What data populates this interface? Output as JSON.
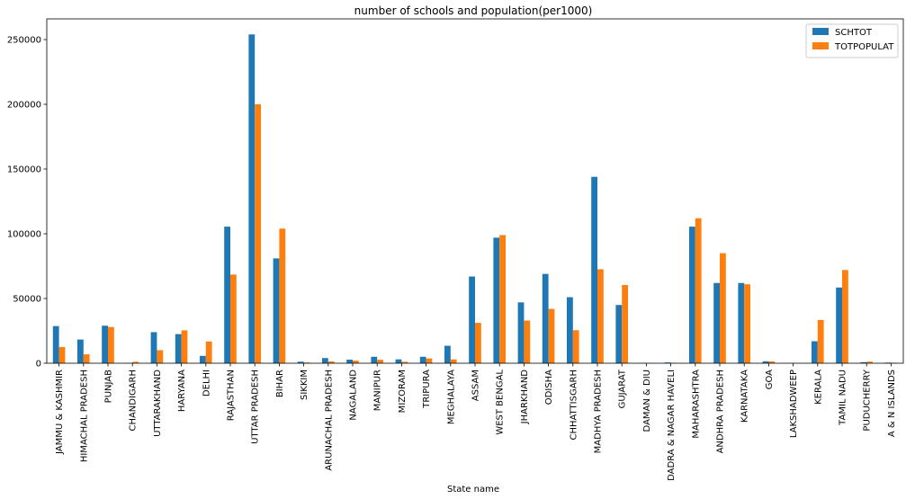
{
  "chart_data": {
    "type": "bar",
    "title": "number of schools and population(per1000)",
    "xlabel": "State name",
    "ylabel": "",
    "ylim": [
      0,
      266000
    ],
    "yticks": [
      0,
      50000,
      100000,
      150000,
      200000,
      250000
    ],
    "ytick_labels": [
      "0",
      "50000",
      "100000",
      "150000",
      "200000",
      "250000"
    ],
    "grid": false,
    "legend_position": "top-right",
    "categories": [
      "JAMMU & KASHMIR",
      "HIMACHAL PRADESH",
      "PUNJAB",
      "CHANDIGARH",
      "UTTARAKHAND",
      "HARYANA",
      "DELHI",
      "RAJASTHAN",
      "UTTAR PRADESH",
      "BIHAR",
      "SIKKIM",
      "ARUNACHAL PRADESH",
      "NAGALAND",
      "MANIPUR",
      "MIZORAM",
      "TRIPURA",
      "MEGHALAYA",
      "ASSAM",
      "WEST BENGAL",
      "JHARKHAND",
      "ODISHA",
      "CHHATTISGARH",
      "MADHYA PRADESH",
      "GUJARAT",
      "DAMAN & DIU",
      "DADRA & NAGAR HAVELI",
      "MAHARASHTRA",
      "ANDHRA PRADESH",
      "KARNATAKA",
      "GOA",
      "LAKSHADWEEP",
      "KERALA",
      "TAMIL NADU",
      "PUDUCHERRY",
      "A & N ISLANDS"
    ],
    "series": [
      {
        "name": "SCHTOT",
        "color": "#1f77b4",
        "values": [
          28700,
          18300,
          29000,
          200,
          24000,
          22500,
          5700,
          105500,
          254000,
          81000,
          1200,
          4000,
          2800,
          5000,
          3000,
          5000,
          13500,
          67000,
          97000,
          47000,
          69000,
          51000,
          144000,
          45000,
          200,
          600,
          105500,
          62000,
          62000,
          1500,
          50,
          17000,
          58500,
          800,
          500
        ]
      },
      {
        "name": "TOTPOPULAT",
        "color": "#ff7f0e",
        "values": [
          12500,
          6900,
          28000,
          1100,
          10100,
          25400,
          16800,
          68500,
          200000,
          104000,
          600,
          1400,
          2000,
          2700,
          1100,
          3700,
          3000,
          31200,
          99000,
          33000,
          42000,
          25500,
          72600,
          60400,
          240,
          350,
          112000,
          85000,
          61000,
          1450,
          65,
          33400,
          72000,
          1250,
          380
        ]
      }
    ]
  }
}
